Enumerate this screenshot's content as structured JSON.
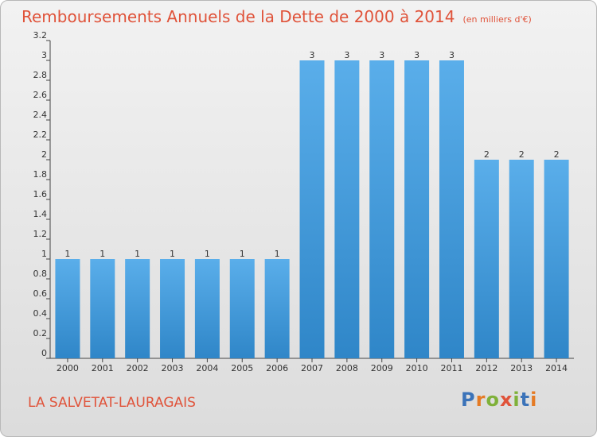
{
  "header": {
    "title": "Remboursements Annuels de la Dette de 2000 à 2014",
    "unit": "(en milliers d'€)"
  },
  "footer": {
    "city": "LA SALVETAT-LAURAGAIS",
    "logo": "Proxiti"
  },
  "colors": {
    "title": "#e0533a",
    "bar_light": "#5aaeea",
    "bar_dark": "#2f86c8",
    "logo": [
      "#3b73b9",
      "#e57b25",
      "#7fb13a",
      "#e0533a"
    ]
  },
  "chart_data": {
    "type": "bar",
    "title": "Remboursements Annuels de la Dette de 2000 à 2014",
    "xlabel": "",
    "ylabel": "",
    "categories": [
      "2000",
      "2001",
      "2002",
      "2003",
      "2004",
      "2005",
      "2006",
      "2007",
      "2008",
      "2009",
      "2010",
      "2011",
      "2012",
      "2013",
      "2014"
    ],
    "values": [
      1,
      1,
      1,
      1,
      1,
      1,
      1,
      3,
      3,
      3,
      3,
      3,
      2,
      2,
      2
    ],
    "data_labels": [
      "1",
      "1",
      "1",
      "1",
      "1",
      "1",
      "1",
      "3",
      "3",
      "3",
      "3",
      "3",
      "2",
      "2",
      "2"
    ],
    "ylim": [
      0,
      3.2
    ],
    "yticks": [
      "0",
      "0.2",
      "0.4",
      "0.6",
      "0.8",
      "1",
      "1.2",
      "1.4",
      "1.6",
      "1.8",
      "2",
      "2.2",
      "2.4",
      "2.6",
      "2.8",
      "3",
      "3.2"
    ],
    "grid": false
  }
}
